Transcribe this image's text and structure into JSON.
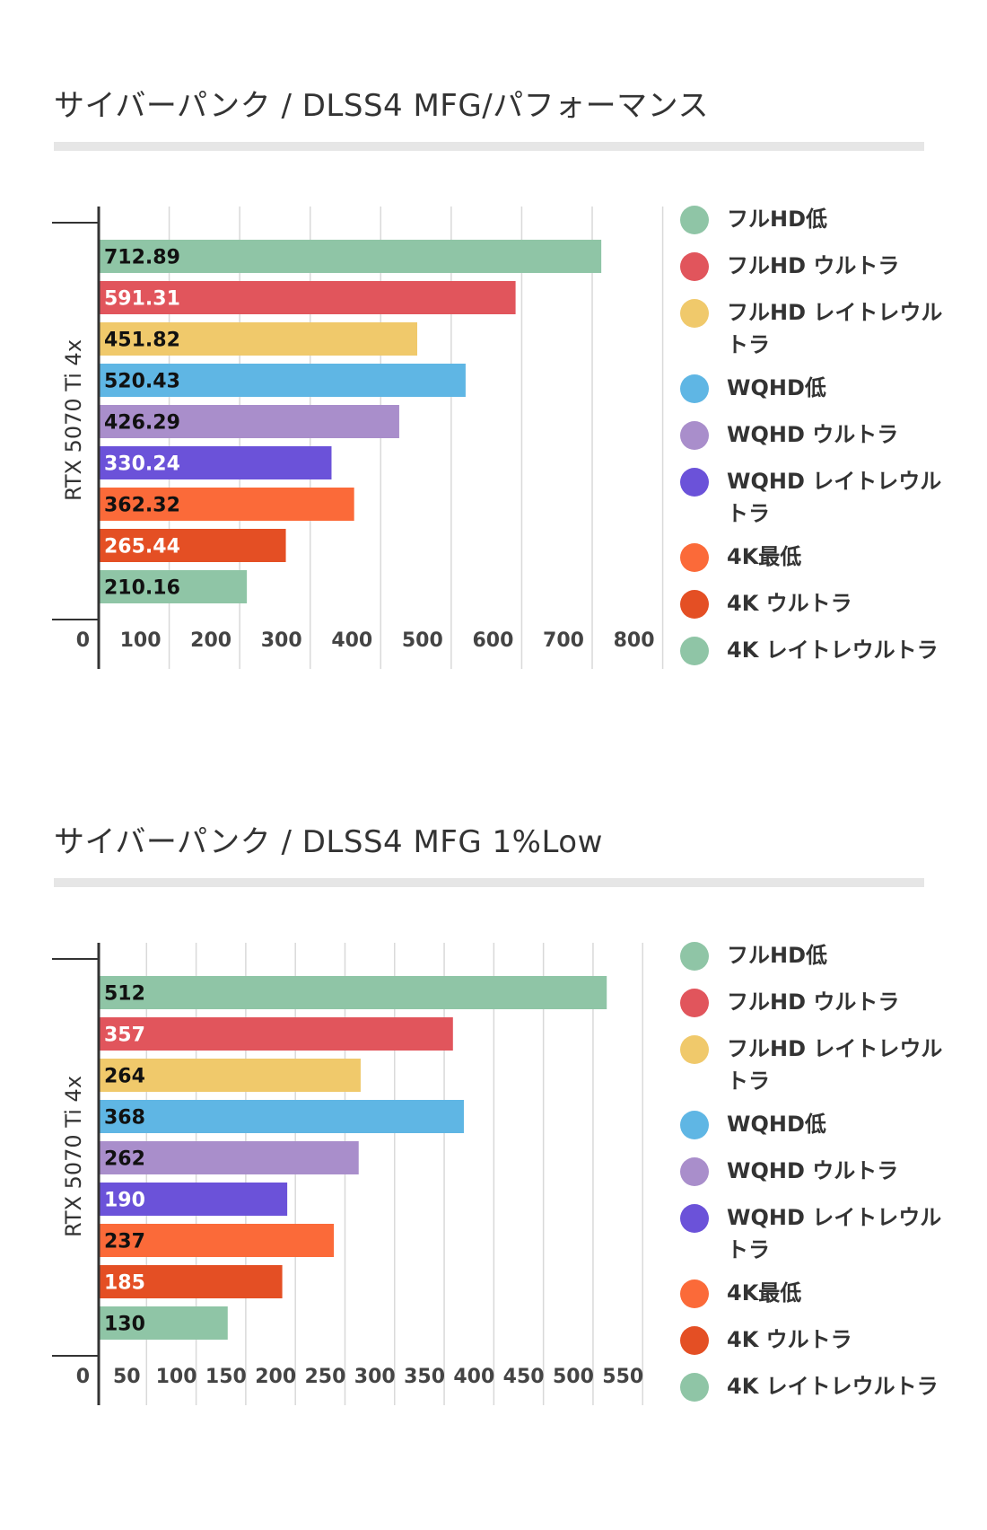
{
  "legend": {
    "colors": [
      "#8fc5a6",
      "#e1555c",
      "#f0c96b",
      "#5fb6e4",
      "#a98ecb",
      "#6b52d9",
      "#fb6a39",
      "#e44f24",
      "#8fc5a6"
    ],
    "labels": [
      "フルHD低",
      "フルHD ウルトラ",
      "フルHD レイトレウルトラ",
      "WQHD低",
      "WQHD ウルトラ",
      "WQHD レイトレウルトラ",
      "4K最低",
      "4K ウルトラ",
      "4K レイトレウルトラ"
    ]
  },
  "chart_data": [
    {
      "type": "bar",
      "orientation": "horizontal",
      "title": "サイバーパンク / DLSS4 MFG/パフォーマンス",
      "category": "RTX 5070 Ti 4x",
      "series": [
        {
          "name": "フルHD低",
          "value": 712.89,
          "label": "712.89"
        },
        {
          "name": "フルHD ウルトラ",
          "value": 591.31,
          "label": "591.31"
        },
        {
          "name": "フルHD レイトレウルトラ",
          "value": 451.82,
          "label": "451.82"
        },
        {
          "name": "WQHD低",
          "value": 520.43,
          "label": "520.43"
        },
        {
          "name": "WQHD ウルトラ",
          "value": 426.29,
          "label": "426.29"
        },
        {
          "name": "WQHD レイトレウルトラ",
          "value": 330.24,
          "label": "330.24"
        },
        {
          "name": "4K最低",
          "value": 362.32,
          "label": "362.32"
        },
        {
          "name": "4K ウルトラ",
          "value": 265.44,
          "label": "265.44"
        },
        {
          "name": "4K レイトレウルトラ",
          "value": 210.16,
          "label": "210.16"
        }
      ],
      "xlim": [
        0,
        800
      ],
      "xticks": [
        0,
        100,
        200,
        300,
        400,
        500,
        600,
        700,
        800
      ],
      "xtick_labels": [
        "0",
        "100",
        "200",
        "300",
        "400",
        "500",
        "600",
        "700",
        "800"
      ],
      "grid": true,
      "legend_position": "right"
    },
    {
      "type": "bar",
      "orientation": "horizontal",
      "title": "サイバーパンク / DLSS4 MFG 1%Low",
      "category": "RTX 5070 Ti 4x",
      "series": [
        {
          "name": "フルHD低",
          "value": 512,
          "label": "512"
        },
        {
          "name": "フルHD ウルトラ",
          "value": 357,
          "label": "357"
        },
        {
          "name": "フルHD レイトレウルトラ",
          "value": 264,
          "label": "264"
        },
        {
          "name": "WQHD低",
          "value": 368,
          "label": "368"
        },
        {
          "name": "WQHD ウルトラ",
          "value": 262,
          "label": "262"
        },
        {
          "name": "WQHD レイトレウルトラ",
          "value": 190,
          "label": "190"
        },
        {
          "name": "4K最低",
          "value": 237,
          "label": "237"
        },
        {
          "name": "4K ウルトラ",
          "value": 185,
          "label": "185"
        },
        {
          "name": "4K レイトレウルトラ",
          "value": 130,
          "label": "130"
        }
      ],
      "xlim": [
        0,
        550
      ],
      "xticks": [
        0,
        50,
        100,
        150,
        200,
        250,
        300,
        350,
        400,
        450,
        500,
        550
      ],
      "xtick_labels": [
        "0",
        "50",
        "100",
        "150",
        "200",
        "250",
        "300",
        "350",
        "400",
        "450",
        "500",
        "550"
      ],
      "grid": true,
      "legend_position": "right"
    }
  ]
}
